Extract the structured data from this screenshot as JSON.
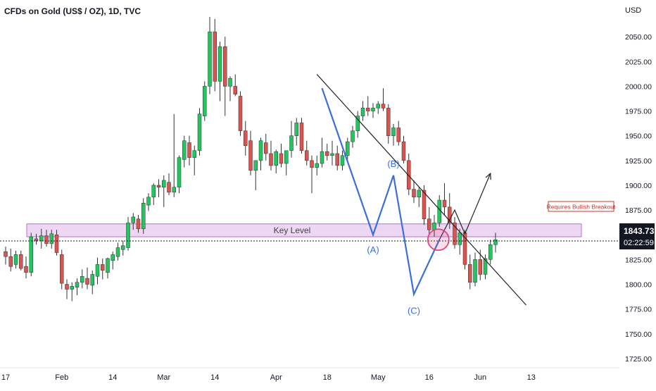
{
  "header": {
    "title": "CFDs on Gold (US$ / OZ), 1D, TVC",
    "currency": "USD"
  },
  "colors": {
    "up": "#22c55e",
    "down": "#d9534f",
    "wick": "#333333",
    "wave": "#3b6fd8",
    "trendline": "#222222",
    "key_level_fill": "#e7c9f0",
    "key_level_stroke": "#b86fcf",
    "highlight_circle": "#e0457b",
    "price_tag_bg": "#131722",
    "price_tag_text": "#ffffff"
  },
  "annotations": {
    "key_level": "Key Level",
    "wave_a": "(A)",
    "wave_b": "(B)",
    "wave_c": "(C)",
    "breakout_note": "Requires Bullish Breakout"
  },
  "price_tag": {
    "price": "1843.73",
    "countdown": "02:22:59"
  },
  "chart_data": {
    "type": "candlestick",
    "title": "CFDs on Gold (US$ / OZ), 1D, TVC",
    "ylabel": "USD",
    "ylim": [
      1710,
      2080
    ],
    "yticks": [
      "2050.00",
      "2025.00",
      "2000.00",
      "1975.00",
      "1950.00",
      "1925.00",
      "1900.00",
      "1875.00",
      "1850.00",
      "1825.00",
      "1800.00",
      "1775.00",
      "1750.00",
      "1725.00"
    ],
    "xticks": [
      "17",
      "Feb",
      "14",
      "Mar",
      "14",
      "Apr",
      "18",
      "May",
      "16",
      "Jun",
      "13"
    ],
    "xtick_sessions": [
      0,
      11,
      21,
      31,
      41,
      53,
      63,
      73,
      83,
      93,
      103
    ],
    "grid": false,
    "key_level": [
      1848,
      1861
    ],
    "last_price": 1843.73,
    "trendline": [
      {
        "session": 61,
        "price": 2012
      },
      {
        "session": 102,
        "price": 1779
      }
    ],
    "abc_wave": [
      {
        "session": 62,
        "price": 1998
      },
      {
        "session": 72,
        "price": 1850
      },
      {
        "session": 76,
        "price": 1910
      },
      {
        "session": 80,
        "price": 1790
      },
      {
        "session": 85,
        "price": 1845
      }
    ],
    "projection": [
      {
        "session": 85,
        "price": 1845
      },
      {
        "session": 88,
        "price": 1875
      },
      {
        "session": 90,
        "price": 1851
      },
      {
        "session": 95,
        "price": 1912
      }
    ],
    "candles": [
      {
        "o": 1833,
        "h": 1838,
        "l": 1820,
        "c": 1828
      },
      {
        "o": 1828,
        "h": 1836,
        "l": 1813,
        "c": 1818
      },
      {
        "o": 1820,
        "h": 1834,
        "l": 1816,
        "c": 1830
      },
      {
        "o": 1830,
        "h": 1834,
        "l": 1814,
        "c": 1816
      },
      {
        "o": 1818,
        "h": 1828,
        "l": 1806,
        "c": 1812
      },
      {
        "o": 1812,
        "h": 1852,
        "l": 1808,
        "c": 1848
      },
      {
        "o": 1846,
        "h": 1851,
        "l": 1840,
        "c": 1844
      },
      {
        "o": 1844,
        "h": 1856,
        "l": 1836,
        "c": 1849
      },
      {
        "o": 1849,
        "h": 1855,
        "l": 1838,
        "c": 1841
      },
      {
        "o": 1841,
        "h": 1855,
        "l": 1836,
        "c": 1851
      },
      {
        "o": 1850,
        "h": 1855,
        "l": 1829,
        "c": 1832
      },
      {
        "o": 1830,
        "h": 1835,
        "l": 1795,
        "c": 1801
      },
      {
        "o": 1800,
        "h": 1805,
        "l": 1785,
        "c": 1795
      },
      {
        "o": 1795,
        "h": 1802,
        "l": 1783,
        "c": 1798
      },
      {
        "o": 1797,
        "h": 1806,
        "l": 1789,
        "c": 1802
      },
      {
        "o": 1802,
        "h": 1815,
        "l": 1796,
        "c": 1808
      },
      {
        "o": 1806,
        "h": 1817,
        "l": 1795,
        "c": 1800
      },
      {
        "o": 1799,
        "h": 1814,
        "l": 1790,
        "c": 1810
      },
      {
        "o": 1808,
        "h": 1827,
        "l": 1800,
        "c": 1820
      },
      {
        "o": 1820,
        "h": 1826,
        "l": 1805,
        "c": 1814
      },
      {
        "o": 1812,
        "h": 1827,
        "l": 1806,
        "c": 1826
      },
      {
        "o": 1824,
        "h": 1833,
        "l": 1815,
        "c": 1830
      },
      {
        "o": 1828,
        "h": 1842,
        "l": 1824,
        "c": 1837
      },
      {
        "o": 1835,
        "h": 1844,
        "l": 1829,
        "c": 1839
      },
      {
        "o": 1837,
        "h": 1868,
        "l": 1834,
        "c": 1862
      },
      {
        "o": 1862,
        "h": 1872,
        "l": 1855,
        "c": 1868
      },
      {
        "o": 1866,
        "h": 1870,
        "l": 1852,
        "c": 1856
      },
      {
        "o": 1856,
        "h": 1887,
        "l": 1851,
        "c": 1882
      },
      {
        "o": 1880,
        "h": 1892,
        "l": 1874,
        "c": 1888
      },
      {
        "o": 1888,
        "h": 1902,
        "l": 1880,
        "c": 1900
      },
      {
        "o": 1900,
        "h": 1906,
        "l": 1888,
        "c": 1898
      },
      {
        "o": 1898,
        "h": 1910,
        "l": 1878,
        "c": 1905
      },
      {
        "o": 1903,
        "h": 1912,
        "l": 1890,
        "c": 1893
      },
      {
        "o": 1893,
        "h": 1972,
        "l": 1888,
        "c": 1898
      },
      {
        "o": 1898,
        "h": 1930,
        "l": 1892,
        "c": 1928
      },
      {
        "o": 1926,
        "h": 1950,
        "l": 1918,
        "c": 1945
      },
      {
        "o": 1943,
        "h": 1950,
        "l": 1920,
        "c": 1928
      },
      {
        "o": 1928,
        "h": 1940,
        "l": 1910,
        "c": 1935
      },
      {
        "o": 1935,
        "h": 1978,
        "l": 1930,
        "c": 1972
      },
      {
        "o": 1970,
        "h": 2005,
        "l": 1965,
        "c": 2000
      },
      {
        "o": 2000,
        "h": 2070,
        "l": 1992,
        "c": 2055
      },
      {
        "o": 2055,
        "h": 2068,
        "l": 1995,
        "c": 2005
      },
      {
        "o": 2005,
        "h": 2045,
        "l": 1985,
        "c": 2040
      },
      {
        "o": 2040,
        "h": 2050,
        "l": 1970,
        "c": 2000
      },
      {
        "o": 2000,
        "h": 2010,
        "l": 1985,
        "c": 2008
      },
      {
        "o": 2000,
        "h": 2012,
        "l": 1990,
        "c": 1992
      },
      {
        "o": 1990,
        "h": 1995,
        "l": 1950,
        "c": 1955
      },
      {
        "o": 1955,
        "h": 1965,
        "l": 1930,
        "c": 1940
      },
      {
        "o": 1945,
        "h": 1955,
        "l": 1910,
        "c": 1915
      },
      {
        "o": 1915,
        "h": 1925,
        "l": 1895,
        "c": 1925
      },
      {
        "o": 1925,
        "h": 1948,
        "l": 1915,
        "c": 1945
      },
      {
        "o": 1943,
        "h": 1952,
        "l": 1925,
        "c": 1932
      },
      {
        "o": 1932,
        "h": 1945,
        "l": 1915,
        "c": 1920
      },
      {
        "o": 1920,
        "h": 1936,
        "l": 1912,
        "c": 1934
      },
      {
        "o": 1932,
        "h": 1942,
        "l": 1918,
        "c": 1922
      },
      {
        "o": 1922,
        "h": 1935,
        "l": 1910,
        "c": 1935
      },
      {
        "o": 1935,
        "h": 1965,
        "l": 1928,
        "c": 1950
      },
      {
        "o": 1950,
        "h": 1968,
        "l": 1940,
        "c": 1963
      },
      {
        "o": 1963,
        "h": 1968,
        "l": 1932,
        "c": 1935
      },
      {
        "o": 1935,
        "h": 1945,
        "l": 1920,
        "c": 1925
      },
      {
        "o": 1925,
        "h": 1930,
        "l": 1892,
        "c": 1918
      },
      {
        "o": 1918,
        "h": 1930,
        "l": 1910,
        "c": 1922
      },
      {
        "o": 1922,
        "h": 1948,
        "l": 1918,
        "c": 1934
      },
      {
        "o": 1934,
        "h": 1942,
        "l": 1925,
        "c": 1930
      },
      {
        "o": 1930,
        "h": 1945,
        "l": 1920,
        "c": 1932
      },
      {
        "o": 1932,
        "h": 1940,
        "l": 1915,
        "c": 1920
      },
      {
        "o": 1920,
        "h": 1935,
        "l": 1915,
        "c": 1930
      },
      {
        "o": 1930,
        "h": 1948,
        "l": 1925,
        "c": 1944
      },
      {
        "o": 1944,
        "h": 1960,
        "l": 1938,
        "c": 1955
      },
      {
        "o": 1955,
        "h": 1975,
        "l": 1948,
        "c": 1970
      },
      {
        "o": 1970,
        "h": 1985,
        "l": 1965,
        "c": 1978
      },
      {
        "o": 1978,
        "h": 1990,
        "l": 1970,
        "c": 1975
      },
      {
        "o": 1975,
        "h": 1983,
        "l": 1968,
        "c": 1978
      },
      {
        "o": 1978,
        "h": 1985,
        "l": 1972,
        "c": 1982
      },
      {
        "o": 1982,
        "h": 1998,
        "l": 1975,
        "c": 1978
      },
      {
        "o": 1978,
        "h": 1982,
        "l": 1942,
        "c": 1950
      },
      {
        "o": 1950,
        "h": 1962,
        "l": 1940,
        "c": 1958
      },
      {
        "o": 1958,
        "h": 1965,
        "l": 1940,
        "c": 1944
      },
      {
        "o": 1944,
        "h": 1950,
        "l": 1922,
        "c": 1925
      },
      {
        "o": 1925,
        "h": 1932,
        "l": 1890,
        "c": 1896
      },
      {
        "o": 1896,
        "h": 1905,
        "l": 1882,
        "c": 1888
      },
      {
        "o": 1888,
        "h": 1898,
        "l": 1878,
        "c": 1895
      },
      {
        "o": 1895,
        "h": 1900,
        "l": 1860,
        "c": 1866
      },
      {
        "o": 1866,
        "h": 1878,
        "l": 1850,
        "c": 1855
      },
      {
        "o": 1855,
        "h": 1870,
        "l": 1848,
        "c": 1862
      },
      {
        "o": 1862,
        "h": 1890,
        "l": 1858,
        "c": 1885
      },
      {
        "o": 1885,
        "h": 1902,
        "l": 1870,
        "c": 1878
      },
      {
        "o": 1878,
        "h": 1892,
        "l": 1856,
        "c": 1862
      },
      {
        "o": 1862,
        "h": 1868,
        "l": 1836,
        "c": 1840
      },
      {
        "o": 1840,
        "h": 1856,
        "l": 1830,
        "c": 1852
      },
      {
        "o": 1852,
        "h": 1855,
        "l": 1815,
        "c": 1820
      },
      {
        "o": 1820,
        "h": 1830,
        "l": 1795,
        "c": 1802
      },
      {
        "o": 1802,
        "h": 1832,
        "l": 1798,
        "c": 1825
      },
      {
        "o": 1825,
        "h": 1835,
        "l": 1804,
        "c": 1810
      },
      {
        "o": 1810,
        "h": 1830,
        "l": 1805,
        "c": 1826
      },
      {
        "o": 1825,
        "h": 1845,
        "l": 1820,
        "c": 1840
      },
      {
        "o": 1840,
        "h": 1852,
        "l": 1832,
        "c": 1845
      }
    ]
  }
}
